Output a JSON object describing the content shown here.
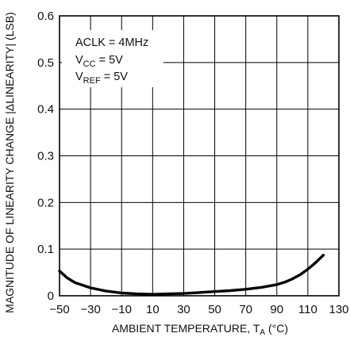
{
  "chart_data": {
    "type": "line",
    "title": "",
    "xlabel": "AMBIENT TEMPERATURE, T",
    "xlabel_sub": "A",
    "xlabel_unit": " (°C)",
    "ylabel": "MAGNITUDE OF LINEARITY CHANGE |ΔLINEARITY| (LSB)",
    "xlim": [
      -50,
      130
    ],
    "ylim": [
      0,
      0.6
    ],
    "x_ticks": [
      "−50",
      "−30",
      "−10",
      "10",
      "30",
      "50",
      "70",
      "90",
      "110",
      "130"
    ],
    "y_ticks": [
      "0",
      "0.1",
      "0.2",
      "0.3",
      "0.4",
      "0.5",
      "0.6"
    ],
    "grid": true,
    "annotations": {
      "line1": "ACLK = 4MHz",
      "line2_main": "V",
      "line2_sub": "CC",
      "line2_rest": " = 5V",
      "line3_main": "V",
      "line3_sub": "REF",
      "line3_rest": " = 5V"
    },
    "series": [
      {
        "color": "#000000",
        "x": [
          -50,
          -45,
          -40,
          -30,
          -20,
          -10,
          0,
          10,
          20,
          30,
          40,
          50,
          60,
          70,
          80,
          90,
          95,
          100,
          105,
          110,
          115,
          120
        ],
        "y": [
          0.053,
          0.038,
          0.028,
          0.017,
          0.01,
          0.006,
          0.004,
          0.003,
          0.004,
          0.005,
          0.007,
          0.009,
          0.011,
          0.014,
          0.018,
          0.024,
          0.029,
          0.036,
          0.045,
          0.057,
          0.071,
          0.087
        ]
      }
    ]
  }
}
